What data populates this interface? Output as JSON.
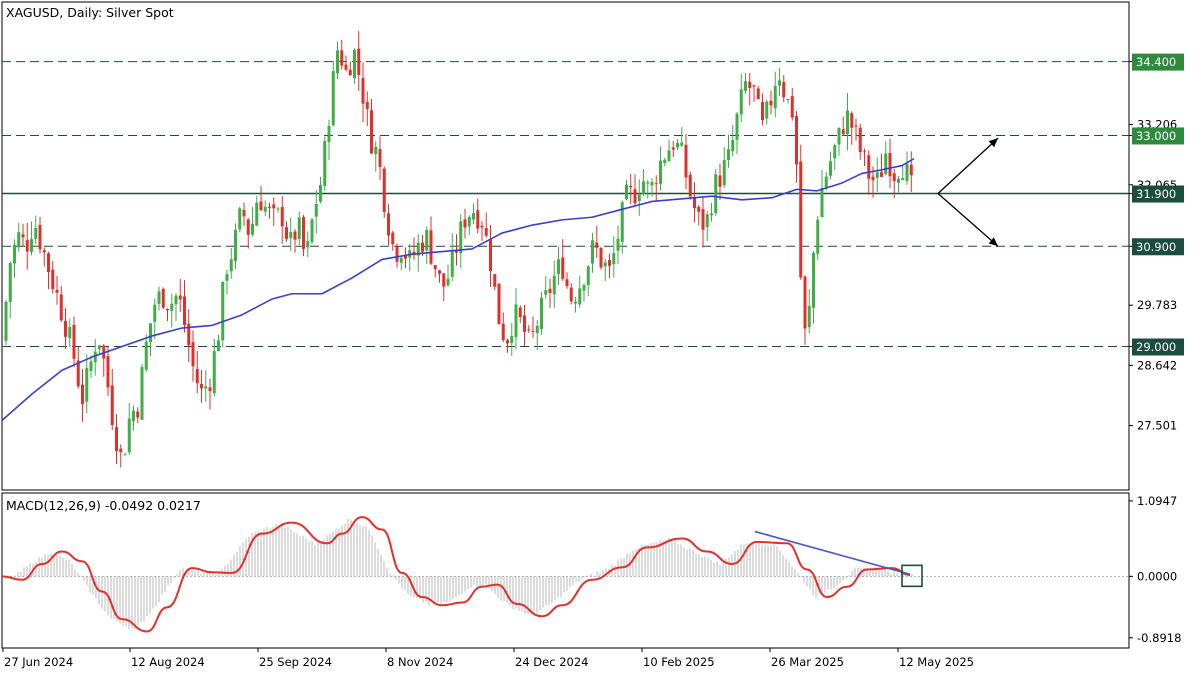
{
  "chart_data": [
    {
      "type": "candlestick",
      "title": "XAGUSD, Daily:  Silver Spot",
      "price_ticks": [
        "34.400",
        "33.206",
        "33.000",
        "32.065",
        "31.900",
        "30.900",
        "29.783",
        "29.000",
        "28.642",
        "27.501"
      ],
      "date_labels": [
        "27 Jun 2024",
        "12 Aug 2024",
        "25 Sep 2024",
        "8 Nov 2024",
        "24 Dec 2024",
        "10 Feb 2025",
        "26 Mar 2025",
        "12 May 2025"
      ],
      "ylim": [
        26.28,
        35.53
      ],
      "levels": [
        {
          "value": 34.4,
          "label": "34.400",
          "color": "#2e8b3e"
        },
        {
          "value": 33.0,
          "label": "33.000",
          "color": "#2e8b3e"
        },
        {
          "value": 31.9,
          "label": "31.900",
          "color": "#1a4d3e"
        },
        {
          "value": 30.9,
          "label": "30.900",
          "color": "#1a4d3e"
        },
        {
          "value": 29.0,
          "label": "29.000",
          "color": "#1a4d3e"
        }
      ],
      "moving_average": {
        "color": "#3a3fcf"
      },
      "candle_colors": {
        "up": "#3fae49",
        "down": "#e0302b"
      },
      "close_path": [
        [
          0,
          29.1
        ],
        [
          8,
          30.6
        ],
        [
          16,
          31.1
        ],
        [
          24,
          30.9
        ],
        [
          32,
          31.4
        ],
        [
          40,
          30.9
        ],
        [
          48,
          30.4
        ],
        [
          56,
          29.9
        ],
        [
          64,
          29.4
        ],
        [
          72,
          28.8
        ],
        [
          80,
          28.0
        ],
        [
          88,
          28.6
        ],
        [
          96,
          29.3
        ],
        [
          104,
          28.5
        ],
        [
          112,
          27.5
        ],
        [
          120,
          26.8
        ],
        [
          128,
          27.7
        ],
        [
          136,
          27.9
        ],
        [
          144,
          29.0
        ],
        [
          152,
          29.8
        ],
        [
          160,
          30.0
        ],
        [
          168,
          29.8
        ],
        [
          176,
          30.0
        ],
        [
          184,
          29.3
        ],
        [
          192,
          28.5
        ],
        [
          200,
          28.1
        ],
        [
          208,
          28.4
        ],
        [
          216,
          29.2
        ],
        [
          224,
          30.5
        ],
        [
          232,
          30.9
        ],
        [
          240,
          31.6
        ],
        [
          248,
          31.1
        ],
        [
          256,
          31.9
        ],
        [
          264,
          31.6
        ],
        [
          272,
          31.4
        ],
        [
          280,
          31.5
        ],
        [
          288,
          30.9
        ],
        [
          296,
          31.3
        ],
        [
          304,
          30.6
        ],
        [
          312,
          31.6
        ],
        [
          320,
          32.2
        ],
        [
          328,
          33.6
        ],
        [
          336,
          34.7
        ],
        [
          344,
          34.2
        ],
        [
          352,
          34.6
        ],
        [
          360,
          33.9
        ],
        [
          368,
          33.0
        ],
        [
          376,
          32.6
        ],
        [
          384,
          31.6
        ],
        [
          392,
          30.8
        ],
        [
          400,
          30.9
        ],
        [
          408,
          30.6
        ],
        [
          416,
          30.9
        ],
        [
          424,
          31.1
        ],
        [
          432,
          30.6
        ],
        [
          440,
          30.1
        ],
        [
          448,
          30.4
        ],
        [
          456,
          31.0
        ],
        [
          464,
          31.5
        ],
        [
          472,
          31.6
        ],
        [
          480,
          31.4
        ],
        [
          488,
          30.7
        ],
        [
          496,
          29.6
        ],
        [
          504,
          29.1
        ],
        [
          512,
          29.6
        ],
        [
          520,
          29.4
        ],
        [
          528,
          29.0
        ],
        [
          536,
          29.5
        ],
        [
          544,
          29.9
        ],
        [
          552,
          30.3
        ],
        [
          560,
          30.6
        ],
        [
          568,
          29.9
        ],
        [
          576,
          30.1
        ],
        [
          584,
          30.5
        ],
        [
          592,
          30.9
        ],
        [
          600,
          30.6
        ],
        [
          608,
          30.4
        ],
        [
          616,
          31.1
        ],
        [
          624,
          31.8
        ],
        [
          632,
          31.9
        ],
        [
          640,
          32.2
        ],
        [
          648,
          31.9
        ],
        [
          656,
          32.4
        ],
        [
          664,
          32.7
        ],
        [
          672,
          32.9
        ],
        [
          680,
          32.6
        ],
        [
          688,
          31.9
        ],
        [
          696,
          31.4
        ],
        [
          704,
          31.3
        ],
        [
          712,
          32.0
        ],
        [
          720,
          32.3
        ],
        [
          728,
          32.6
        ],
        [
          736,
          33.4
        ],
        [
          744,
          34.0
        ],
        [
          752,
          33.8
        ],
        [
          760,
          33.1
        ],
        [
          768,
          33.6
        ],
        [
          776,
          34.3
        ],
        [
          784,
          33.7
        ],
        [
          792,
          33.4
        ],
        [
          796,
          31.9
        ],
        [
          800,
          29.6
        ],
        [
          804,
          29.1
        ],
        [
          808,
          29.8
        ],
        [
          812,
          30.9
        ],
        [
          816,
          31.6
        ],
        [
          820,
          32.0
        ],
        [
          828,
          32.5
        ],
        [
          836,
          32.9
        ],
        [
          844,
          33.4
        ],
        [
          852,
          33.1
        ],
        [
          860,
          32.6
        ],
        [
          868,
          32.2
        ],
        [
          876,
          32.1
        ],
        [
          884,
          32.7
        ],
        [
          892,
          32.3
        ],
        [
          900,
          32.5
        ],
        [
          906,
          32.2
        ],
        [
          912,
          31.8
        ]
      ],
      "ma_path": [
        [
          0,
          27.6
        ],
        [
          30,
          28.1
        ],
        [
          60,
          28.55
        ],
        [
          90,
          28.8
        ],
        [
          120,
          29.0
        ],
        [
          150,
          29.2
        ],
        [
          180,
          29.35
        ],
        [
          210,
          29.4
        ],
        [
          240,
          29.6
        ],
        [
          270,
          29.9
        ],
        [
          290,
          30.0
        ],
        [
          320,
          30.0
        ],
        [
          350,
          30.3
        ],
        [
          380,
          30.65
        ],
        [
          410,
          30.75
        ],
        [
          440,
          30.8
        ],
        [
          470,
          30.85
        ],
        [
          500,
          31.15
        ],
        [
          530,
          31.3
        ],
        [
          560,
          31.4
        ],
        [
          590,
          31.45
        ],
        [
          620,
          31.6
        ],
        [
          650,
          31.75
        ],
        [
          680,
          31.8
        ],
        [
          710,
          31.85
        ],
        [
          740,
          31.78
        ],
        [
          770,
          31.82
        ],
        [
          795,
          31.98
        ],
        [
          815,
          31.95
        ],
        [
          840,
          32.1
        ],
        [
          860,
          32.28
        ],
        [
          880,
          32.35
        ],
        [
          900,
          32.43
        ],
        [
          912,
          32.56
        ]
      ],
      "annotation_arrows": [
        {
          "from": [
            938,
            31.9
          ],
          "to": [
            998,
            32.95
          ]
        },
        {
          "from": [
            938,
            31.9
          ],
          "to": [
            998,
            30.9
          ]
        }
      ]
    },
    {
      "type": "line",
      "title": "MACD(12,26,9) -0.0492 0.0217",
      "y_ticks": [
        "1.0947",
        "0.0000",
        "-0.8918"
      ],
      "ylim": [
        -1.04,
        1.21
      ],
      "series": [
        {
          "values": [
            [
              0,
              0.0
            ],
            [
              20,
              -0.05
            ],
            [
              40,
              0.18
            ],
            [
              60,
              0.36
            ],
            [
              80,
              0.22
            ],
            [
              100,
              -0.22
            ],
            [
              120,
              -0.62
            ],
            [
              145,
              -0.8
            ],
            [
              165,
              -0.45
            ],
            [
              190,
              0.12
            ],
            [
              210,
              0.06
            ],
            [
              230,
              0.05
            ],
            [
              260,
              0.62
            ],
            [
              290,
              0.78
            ],
            [
              325,
              0.48
            ],
            [
              340,
              0.62
            ],
            [
              360,
              0.86
            ],
            [
              380,
              0.68
            ],
            [
              400,
              0.05
            ],
            [
              420,
              -0.3
            ],
            [
              440,
              -0.42
            ],
            [
              460,
              -0.38
            ],
            [
              480,
              -0.15
            ],
            [
              495,
              -0.12
            ],
            [
              515,
              -0.4
            ],
            [
              540,
              -0.58
            ],
            [
              560,
              -0.42
            ],
            [
              590,
              -0.05
            ],
            [
              620,
              0.13
            ],
            [
              645,
              0.42
            ],
            [
              680,
              0.55
            ],
            [
              705,
              0.36
            ],
            [
              730,
              0.18
            ],
            [
              755,
              0.5
            ],
            [
              785,
              0.48
            ],
            [
              805,
              0.1
            ],
            [
              825,
              -0.3
            ],
            [
              845,
              -0.15
            ],
            [
              865,
              0.1
            ],
            [
              890,
              0.12
            ],
            [
              908,
              0.02
            ]
          ],
          "color": "#e0302b"
        }
      ],
      "histogram_color": "#b9b9b9",
      "divergence_line": {
        "from": [
          755,
          0.65
        ],
        "to": [
          910,
          0.03
        ],
        "color": "#4a56c8"
      }
    }
  ]
}
